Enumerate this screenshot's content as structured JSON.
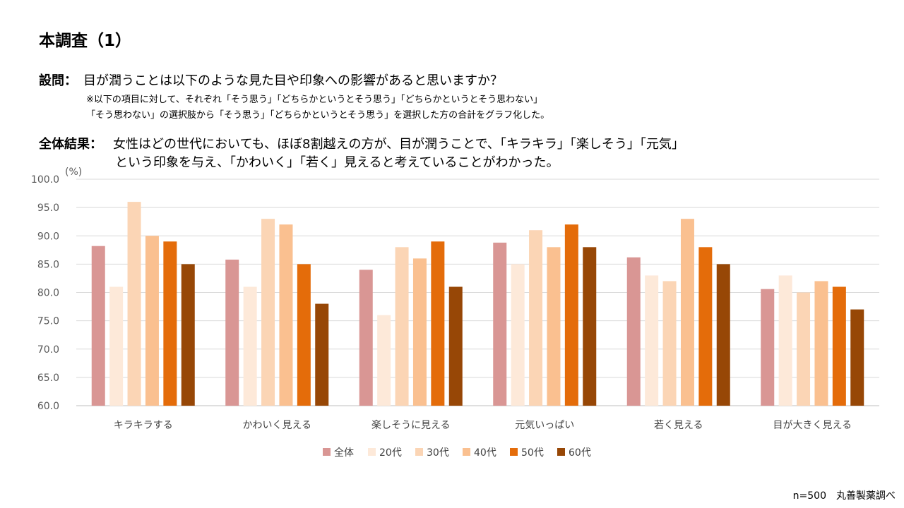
{
  "header": {
    "title": "本調査（1）",
    "question_label": "設問：",
    "question_text": "目が潤うことは以下のような見た目や印象への影響があると思いますか？",
    "note_line1": "※以下の項目に対して、それぞれ「そう思う」「どちらかというとそう思う」「どちらかというとそう思わない」",
    "note_line2": "「そう思わない」の選択肢から「そう思う」「どちらかというとそう思う」を選択した方の合計をグラフ化した。",
    "result_label": "全体結果：",
    "result_line1": "女性はどの世代においても、ほぼ8割越えの方が、目が潤うことで、「キラキラ」「楽しそう」「元気」",
    "result_line2": "という印象を与え、「かわいく」「若く」見えると考えていることがわかった。"
  },
  "footer": {
    "source": "n=500　丸善製薬調べ"
  },
  "chart_data": {
    "type": "bar",
    "unit_label": "(%)",
    "ylim": [
      60,
      100
    ],
    "yticks": [
      "100.0",
      "95.0",
      "90.0",
      "85.0",
      "80.0",
      "75.0",
      "70.0",
      "65.0",
      "60.0"
    ],
    "grid": true,
    "legend_position": "bottom",
    "categories": [
      "キラキラする",
      "かわいく見える",
      "楽しそうに見える",
      "元気いっぱい",
      "若く見える",
      "目が大きく見える"
    ],
    "series": [
      {
        "name": "全体",
        "color": "#D99694",
        "values": [
          88.2,
          85.8,
          84.0,
          88.8,
          86.2,
          80.6
        ]
      },
      {
        "name": "20代",
        "color": "#FDE9D9",
        "values": [
          81,
          81,
          76,
          85,
          83,
          83
        ]
      },
      {
        "name": "30代",
        "color": "#FBD5B5",
        "values": [
          96,
          93,
          88,
          91,
          82,
          80
        ]
      },
      {
        "name": "40代",
        "color": "#FAC090",
        "values": [
          90,
          92,
          86,
          88,
          93,
          82
        ]
      },
      {
        "name": "50代",
        "color": "#E46C0A",
        "values": [
          89,
          85,
          89,
          92,
          88,
          81
        ]
      },
      {
        "name": "60代",
        "color": "#974706",
        "values": [
          85,
          78,
          81,
          88,
          85,
          77
        ]
      }
    ]
  }
}
